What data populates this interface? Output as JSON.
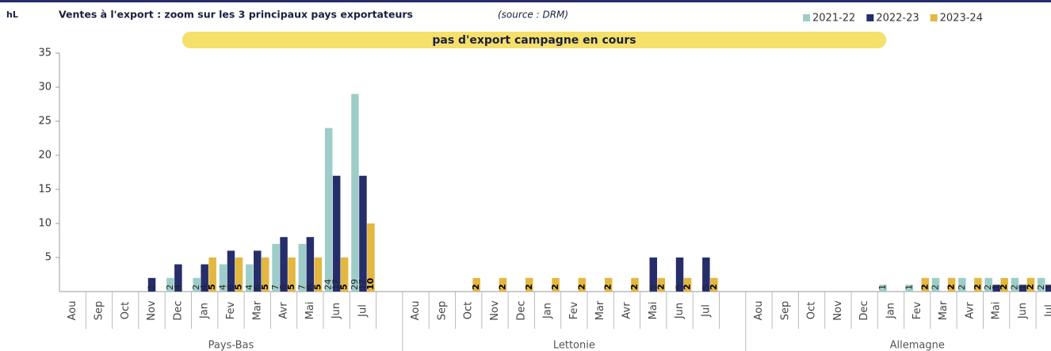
{
  "chart_data": {
    "type": "bar",
    "title": "Ventes à l'export : zoom sur les  3 principaux pays exportateurs",
    "subtitle": "(source : DRM)",
    "ylabel": "hL",
    "annotation": "pas d'export campagne en cours",
    "groups": [
      "Pays-Bas",
      "Lettonie",
      "Allemagne"
    ],
    "categories": [
      "Aou",
      "Sep",
      "Oct",
      "Nov",
      "Dec",
      "Jan",
      "Fev",
      "Mar",
      "Avr",
      "Mai",
      "Jun",
      "Jul",
      null,
      "Aou",
      "Sep",
      "Oct",
      "Nov",
      "Dec",
      "Jan",
      "Fev",
      "Mar",
      "Avr",
      "Mai",
      "Jun",
      "Jul",
      null,
      "Aou",
      "Sep",
      "Oct",
      "Nov",
      "Dec",
      "Jan",
      "Fev",
      "Mar",
      "Avr",
      "Mai",
      "Jun",
      "Jul",
      null
    ],
    "series": [
      {
        "name": "2021-22",
        "color": "#9ecdc9",
        "values": [
          null,
          null,
          null,
          null,
          2,
          2,
          4,
          4,
          7,
          7,
          24,
          29,
          null,
          null,
          null,
          null,
          null,
          null,
          null,
          null,
          null,
          null,
          null,
          null,
          null,
          null,
          null,
          null,
          null,
          null,
          null,
          1,
          1,
          2,
          2,
          2,
          2,
          2,
          null
        ]
      },
      {
        "name": "2022-23",
        "color": "#262d6b",
        "values": [
          null,
          null,
          null,
          2,
          4,
          4,
          6,
          6,
          8,
          8,
          17,
          17,
          null,
          null,
          null,
          null,
          null,
          null,
          null,
          null,
          null,
          null,
          5,
          5,
          5,
          null,
          null,
          null,
          null,
          null,
          null,
          null,
          null,
          null,
          null,
          1,
          1,
          1,
          null
        ]
      },
      {
        "name": "2023-24",
        "color": "#e3b740",
        "values": [
          null,
          null,
          null,
          null,
          null,
          5,
          5,
          5,
          5,
          5,
          5,
          10,
          null,
          null,
          null,
          2,
          2,
          2,
          2,
          2,
          2,
          2,
          2,
          2,
          2,
          null,
          null,
          null,
          null,
          null,
          null,
          null,
          2,
          2,
          2,
          2,
          2,
          2,
          null
        ]
      }
    ],
    "ylim": [
      0,
      35
    ],
    "yticks": [
      5,
      10,
      15,
      20,
      25,
      30,
      35
    ],
    "grid": false,
    "legend": "top-right"
  }
}
